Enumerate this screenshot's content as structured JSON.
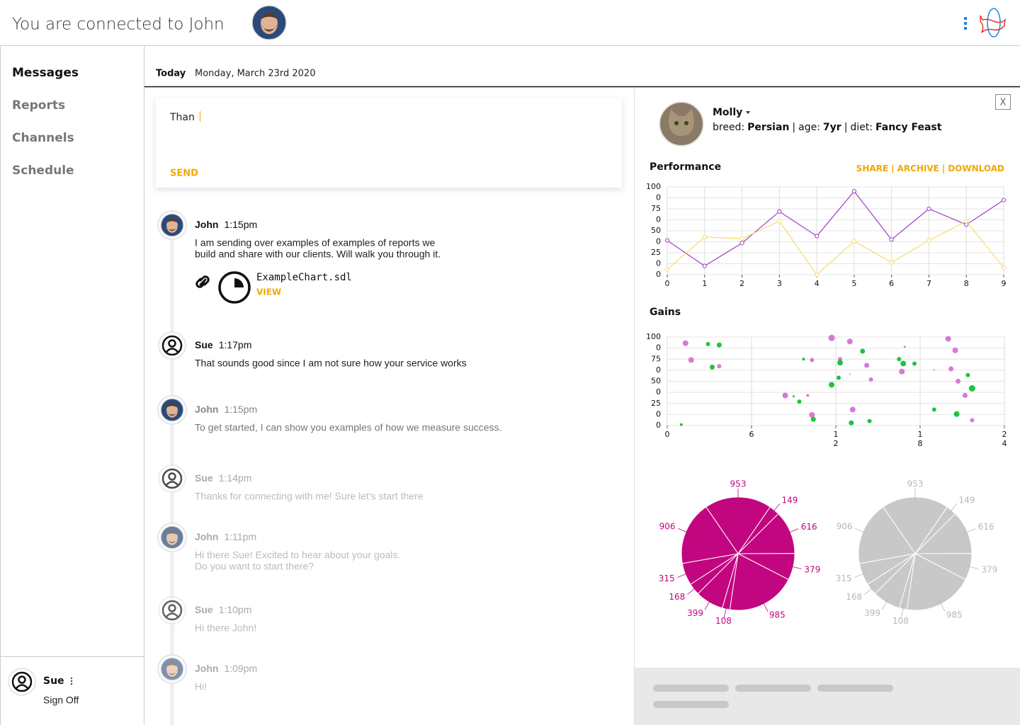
{
  "header": {
    "title": "You are connected to John"
  },
  "nav": {
    "items": [
      "Messages",
      "Reports",
      "Channels",
      "Schedule"
    ],
    "active": 0
  },
  "user": {
    "name": "Sue",
    "action": "Sign Off"
  },
  "date": {
    "label": "Today",
    "value": "Monday, March 23rd 2020"
  },
  "composer": {
    "draft": "Than",
    "button": "SEND"
  },
  "messages": [
    {
      "name": "John",
      "time": "1:15pm",
      "lines": [
        "I am sending over examples of examples of reports we",
        "build and share with our clients. Will walk you through it."
      ]
    },
    {
      "name": "Sue",
      "time": "1:17pm",
      "lines": [
        "That sounds good since I am not sure how your service works"
      ]
    },
    {
      "name": "John",
      "time": "1:15pm",
      "lines": [
        "To get started, I can show you examples of how we measure success."
      ]
    },
    {
      "name": "Sue",
      "time": "1:14pm",
      "lines": [
        "Thanks for connecting with me! Sure let's start there"
      ]
    },
    {
      "name": "John",
      "time": "1:11pm",
      "lines": [
        "Hi there Sue! Excited to hear about your goals.",
        "Do you want to start there?"
      ]
    },
    {
      "name": "Sue",
      "time": "1:10pm",
      "lines": [
        "Hi there John!"
      ]
    },
    {
      "name": "John",
      "time": "1:09pm",
      "lines": [
        "Hi!"
      ]
    }
  ],
  "attachment": {
    "file": "ExampleChart.sdl",
    "action": "VIEW"
  },
  "profile": {
    "name": "Molly",
    "fields": [
      {
        "label": "breed:",
        "value": "Persian"
      },
      {
        "label": "age:",
        "value": "7yr"
      },
      {
        "label": "diet:",
        "value": "Fancy Feast"
      }
    ],
    "separator": "|",
    "close": "X"
  },
  "performance": {
    "type": "line",
    "title": "Performance",
    "actions": [
      "SHARE",
      "ARCHIVE",
      "DOWNLOAD"
    ],
    "separator": "|",
    "x": [
      0,
      1,
      2,
      3,
      4,
      5,
      6,
      7,
      8,
      9
    ],
    "xlim": [
      0,
      9
    ],
    "xticks": [
      0,
      1,
      2,
      3,
      4,
      5,
      6,
      7,
      8,
      9
    ],
    "ylim": [
      0,
      100
    ],
    "yticks": [
      100,
      {
        "value": 87.5,
        "label": "0"
      },
      75,
      {
        "value": 62.5,
        "label": "0"
      },
      50,
      {
        "value": 37.5,
        "label": "0"
      },
      25,
      {
        "value": 12.5,
        "label": "0"
      },
      0
    ],
    "grid": true,
    "series": [
      {
        "color": "#a13fc6",
        "values": [
          39,
          10,
          36,
          72,
          44,
          95,
          40,
          75,
          57,
          85
        ]
      },
      {
        "color": "#f4dc6c",
        "values": [
          6,
          43,
          41,
          61,
          0,
          38,
          14,
          39,
          61,
          8
        ]
      }
    ]
  },
  "gains": {
    "type": "scatter",
    "title": "Gains",
    "xlim": [
      0,
      24
    ],
    "xticks": [
      0,
      6,
      12,
      18,
      24
    ],
    "ylim": [
      0,
      100
    ],
    "yticks": [
      100,
      {
        "value": 87.5,
        "label": "0"
      },
      75,
      {
        "value": 62.5,
        "label": "0"
      },
      50,
      {
        "value": 37.5,
        "label": "0"
      },
      25,
      {
        "value": 12.5,
        "label": "0"
      },
      0
    ],
    "grid": true,
    "series": [
      {
        "color": "#d67ad6",
        "x": [
          1.3,
          1.7,
          3.7,
          8.4,
          10,
          10.3,
          10.3,
          11.7,
          12.3,
          13,
          13,
          13.2,
          14.2,
          14.5,
          16.9,
          16.7,
          19,
          20,
          20.5,
          20.2,
          20.7,
          21.2,
          21.7
        ],
        "values": [
          93,
          74,
          67,
          34,
          34,
          74,
          12,
          99,
          75,
          95,
          58,
          18,
          68,
          52,
          89,
          61,
          63,
          98,
          85,
          64,
          50,
          34,
          6
        ],
        "sizes": [
          4,
          4,
          3,
          4,
          2,
          3,
          4,
          4.5,
          3,
          4,
          1,
          4,
          3.5,
          3,
          1.5,
          4,
          1,
          4,
          4,
          3.5,
          3.5,
          3.5,
          3
        ]
      },
      {
        "color": "#1dc43f",
        "x": [
          1,
          2.9,
          3.7,
          3.2,
          9,
          9.4,
          9.7,
          10.4,
          11.7,
          12.2,
          12.3,
          13.1,
          13.9,
          14.4,
          16.5,
          16.8,
          17.6,
          19,
          20.6,
          21.4,
          21.7
        ],
        "values": [
          1,
          92,
          91,
          66,
          33,
          27,
          75,
          7,
          46,
          54,
          71,
          3,
          84,
          5,
          75,
          70,
          70,
          18,
          13,
          57,
          42
        ],
        "sizes": [
          2,
          3,
          3.5,
          3.5,
          1.5,
          3,
          2,
          3.5,
          4,
          3,
          4,
          3.5,
          3.5,
          3,
          3,
          4,
          3,
          3,
          4,
          3,
          4.5
        ]
      }
    ]
  },
  "pies": [
    {
      "type": "pie",
      "color": "#c2067f",
      "label_color": "#c2067f",
      "values": [
        953,
        149,
        616,
        379,
        985,
        108,
        399,
        168,
        315,
        906
      ]
    },
    {
      "type": "pie",
      "color": "#c8c8c8",
      "label_color": "#b8b8b8",
      "values": [
        953,
        149,
        616,
        379,
        985,
        108,
        399,
        168,
        315,
        906
      ]
    }
  ]
}
